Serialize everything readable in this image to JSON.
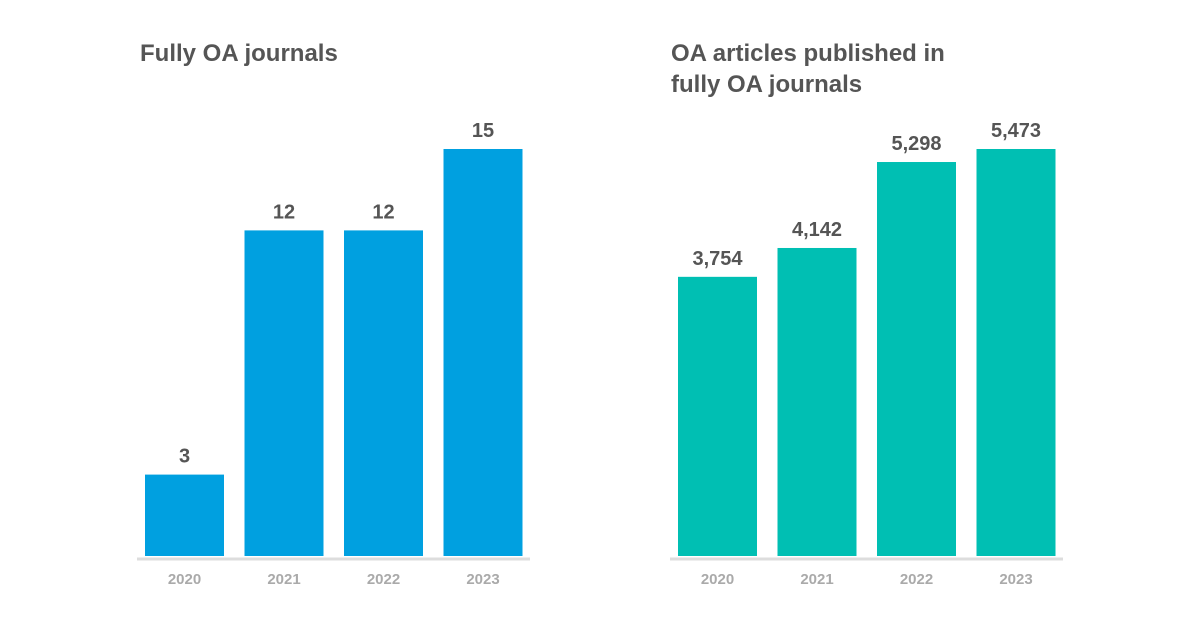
{
  "chart_data": [
    {
      "type": "bar",
      "title": "Fully OA journals",
      "categories": [
        "2020",
        "2021",
        "2022",
        "2023"
      ],
      "values": [
        3,
        12,
        12,
        15
      ],
      "value_labels": [
        "3",
        "12",
        "12",
        "15"
      ],
      "ylim": [
        0,
        15
      ],
      "grid": false,
      "color": "#00a0e0"
    },
    {
      "type": "bar",
      "title": "OA articles published in fully OA journals",
      "categories": [
        "2020",
        "2021",
        "2022",
        "2023"
      ],
      "values": [
        3754,
        4142,
        5298,
        5473
      ],
      "value_labels": [
        "3,754",
        "4,142",
        "5,298",
        "5,473"
      ],
      "ylim": [
        0,
        5473
      ],
      "grid": false,
      "color": "#00bfb3"
    }
  ]
}
